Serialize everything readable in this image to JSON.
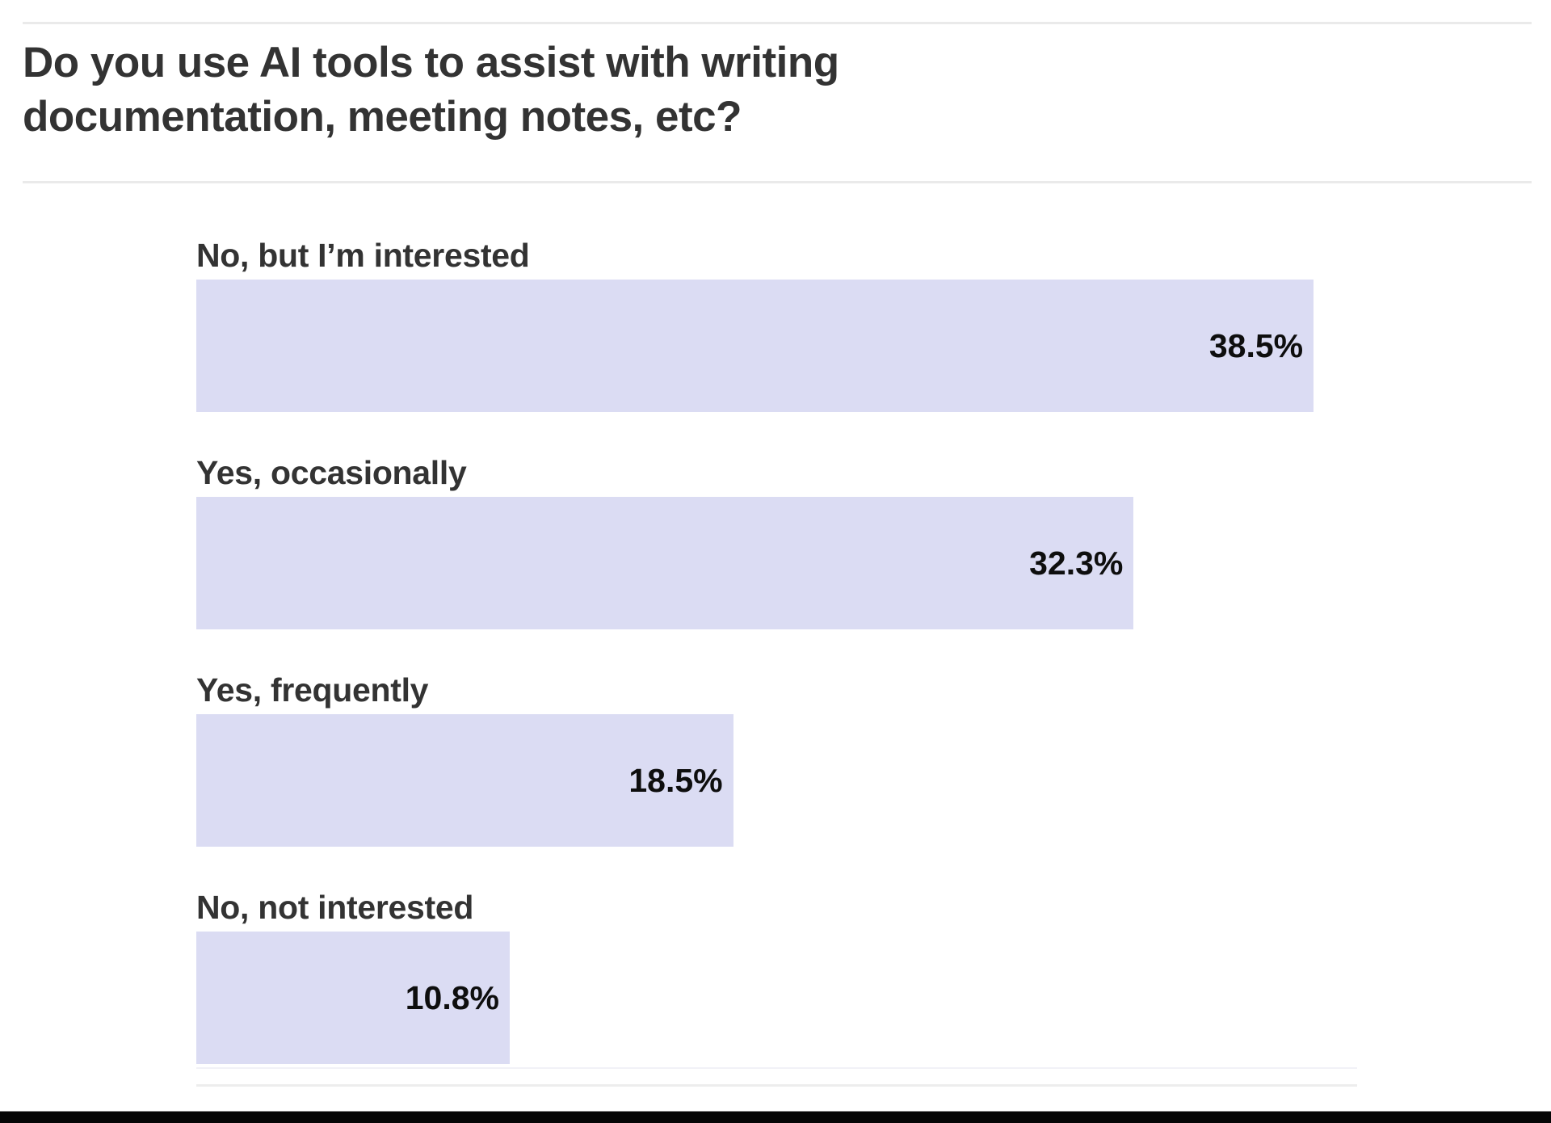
{
  "title": {
    "full": "Do you use AI tools to assist with writing documentation, meeting notes, etc?",
    "line1": "Do you use AI tools to assist with writing",
    "line2": "documentation, meeting notes, etc?"
  },
  "chart_data": {
    "type": "bar",
    "orientation": "horizontal",
    "title": "Do you use AI tools to assist with writing documentation, meeting notes, etc?",
    "categories": [
      "No, but I’m interested",
      "Yes, occasionally",
      "Yes, frequently",
      "No, not interested"
    ],
    "values": [
      38.5,
      32.3,
      18.5,
      10.8
    ],
    "value_labels": [
      "38.5%",
      "32.3%",
      "18.5%",
      "10.8%"
    ],
    "xlabel": "",
    "ylabel": "",
    "xlim": [
      0,
      40
    ],
    "grid": false,
    "legend": false,
    "value_label_position": "inside-right",
    "bar_color": "#dbdcf3",
    "label_color": "#333333",
    "value_color": "#0e0e0e",
    "title_color": "#333333",
    "divider_color": "#eaeaea",
    "footer_bar_color": "#060606",
    "background_color": "#ffffff"
  }
}
